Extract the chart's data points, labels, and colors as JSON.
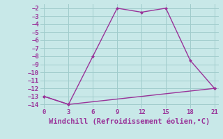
{
  "line1_x": [
    0,
    3,
    6,
    9,
    12,
    15,
    18,
    21
  ],
  "line1_y": [
    -13,
    -14,
    -8,
    -2,
    -2.5,
    -2,
    -8.5,
    -12
  ],
  "line2_x": [
    0,
    3,
    21
  ],
  "line2_y": [
    -13,
    -14,
    -12
  ],
  "color": "#993399",
  "bg_color": "#c8e8e8",
  "grid_color": "#a0cccc",
  "xlabel": "Windchill (Refroidissement éolien,°C)",
  "xlim": [
    -0.5,
    21.5
  ],
  "ylim": [
    -14.5,
    -1.5
  ],
  "xticks": [
    0,
    3,
    6,
    9,
    12,
    15,
    18,
    21
  ],
  "yticks": [
    -2,
    -3,
    -4,
    -5,
    -6,
    -7,
    -8,
    -9,
    -10,
    -11,
    -12,
    -13,
    -14
  ],
  "marker": "D",
  "markersize": 2.5,
  "linewidth": 1.0,
  "xlabel_fontsize": 7.5,
  "tick_fontsize": 6.5
}
